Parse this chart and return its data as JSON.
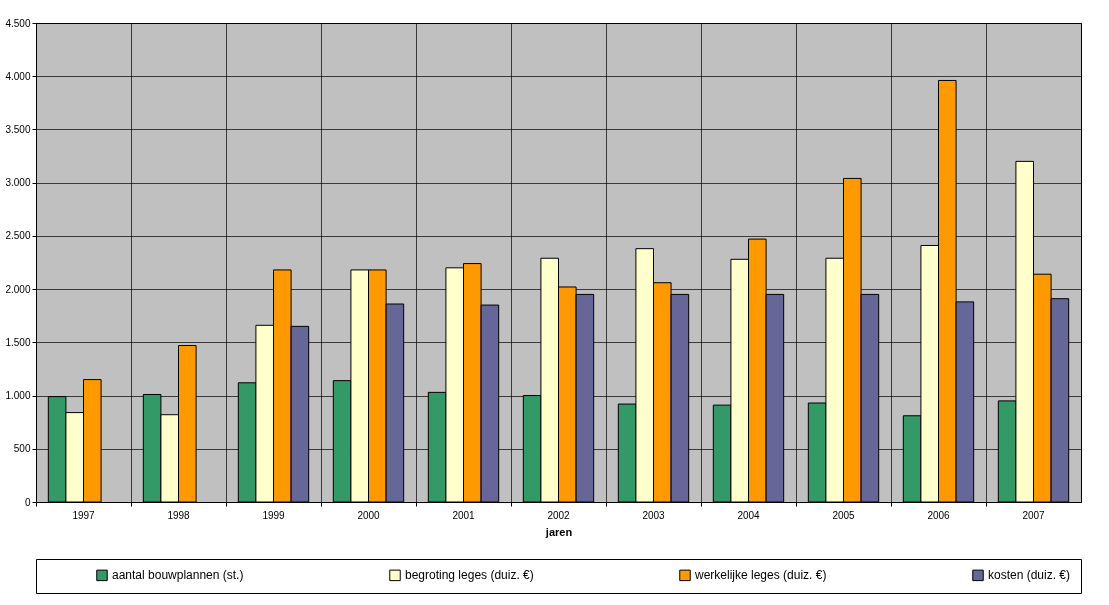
{
  "chart_data": {
    "type": "bar",
    "xlabel": "jaren",
    "categories": [
      "1997",
      "1998",
      "1999",
      "2000",
      "2001",
      "2002",
      "2003",
      "2004",
      "2005",
      "2006",
      "2007"
    ],
    "series": [
      {
        "name": "aantal bouwplannen (st.)",
        "color": "#339966",
        "values": [
          990,
          1010,
          1120,
          1140,
          1030,
          1000,
          920,
          910,
          930,
          810,
          950
        ]
      },
      {
        "name": "begroting leges (duiz. €)",
        "color": "#ffffcc",
        "values": [
          840,
          820,
          1660,
          2180,
          2200,
          2290,
          2380,
          2280,
          2290,
          2410,
          3200
        ]
      },
      {
        "name": "werkelijke leges (duiz. €)",
        "color": "#ff9900",
        "values": [
          1150,
          1470,
          2180,
          2180,
          2240,
          2020,
          2060,
          2470,
          3040,
          3960,
          2140
        ]
      },
      {
        "name": "kosten (duiz. €)",
        "color": "#666699",
        "values": [
          null,
          null,
          1650,
          1860,
          1850,
          1950,
          1950,
          1950,
          1950,
          1880,
          1910
        ]
      }
    ],
    "ylim": [
      0,
      4500
    ],
    "yticks": [
      0,
      500,
      {
        "value": 1000,
        "label": "1.000"
      },
      {
        "value": 1500,
        "label": "1.500"
      },
      {
        "value": 2000,
        "label": "2.000"
      },
      {
        "value": 2500,
        "label": "2.500"
      },
      {
        "value": 3000,
        "label": "3.000"
      },
      {
        "value": 3500,
        "label": "3.500"
      },
      {
        "value": 4000,
        "label": "4.000"
      },
      {
        "value": 4500,
        "label": "4.500"
      }
    ],
    "grid": true,
    "legend": "bottom"
  }
}
